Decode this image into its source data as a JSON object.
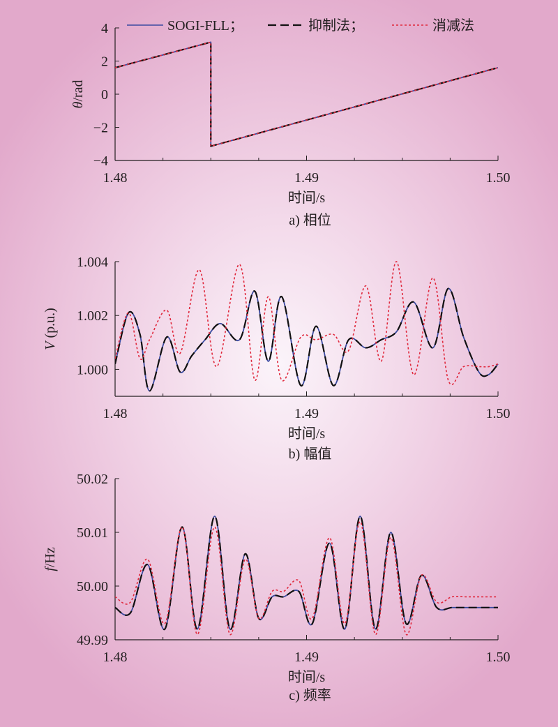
{
  "legend": {
    "sogi": "SOGI-FLL；",
    "suppress": "抑制法；",
    "cancel": "消减法"
  },
  "colors": {
    "sogi": "#3b4aa0",
    "suppress": "#111111",
    "cancel": "#e0283c"
  },
  "chart_data": [
    {
      "type": "line",
      "caption": "a) 相位",
      "xlabel": "时间/s",
      "ylabel": "θ/rad",
      "xlim": [
        1.48,
        1.5
      ],
      "ylim": [
        -4,
        4
      ],
      "xticks": [
        "1.48",
        "1.49",
        "1.50"
      ],
      "yticks": [
        "−4",
        "−2",
        "0",
        "2",
        "4"
      ],
      "series": [
        {
          "name": "SOGI-FLL",
          "x": [
            1.48,
            1.485,
            1.485,
            1.5
          ],
          "y": [
            1.6,
            3.14,
            -3.14,
            1.6
          ]
        },
        {
          "name": "抑制法",
          "x": [
            1.48,
            1.485,
            1.485,
            1.5
          ],
          "y": [
            1.6,
            3.14,
            -3.14,
            1.6
          ]
        },
        {
          "name": "消减法",
          "x": [
            1.48,
            1.485,
            1.485,
            1.5
          ],
          "y": [
            1.6,
            3.14,
            -3.14,
            1.6
          ]
        }
      ]
    },
    {
      "type": "line",
      "caption": "b) 幅值",
      "xlabel": "时间/s",
      "ylabel": "V (p.u.)",
      "xlim": [
        1.48,
        1.5
      ],
      "ylim": [
        0.999,
        1.004
      ],
      "xticks": [
        "1.48",
        "1.49",
        "1.50"
      ],
      "yticks": [
        "1.000",
        "1.002",
        "1.004"
      ],
      "series": [
        {
          "name": "SOGI-FLL",
          "x": [
            1.48,
            1.4807,
            1.4813,
            1.4818,
            1.4827,
            1.4834,
            1.484,
            1.4847,
            1.4855,
            1.4865,
            1.4873,
            1.488,
            1.4887,
            1.4897,
            1.4905,
            1.4914,
            1.4922,
            1.4931,
            1.4939,
            1.4947,
            1.4956,
            1.4966,
            1.4974,
            1.4982,
            1.499,
            1.4995,
            1.5
          ],
          "y": [
            1.0002,
            1.0021,
            1.0013,
            0.9992,
            1.0012,
            0.9999,
            1.0005,
            1.0011,
            1.0017,
            1.0011,
            1.0029,
            1.0003,
            1.0027,
            0.9994,
            1.0016,
            0.9994,
            1.0011,
            1.0008,
            1.0011,
            1.0014,
            1.0025,
            1.0008,
            1.003,
            1.0012,
            0.9999,
            0.9998,
            1.0002
          ]
        },
        {
          "name": "抑制法",
          "x": [
            1.48,
            1.4807,
            1.4813,
            1.4818,
            1.4827,
            1.4834,
            1.484,
            1.4847,
            1.4855,
            1.4865,
            1.4873,
            1.488,
            1.4887,
            1.4897,
            1.4905,
            1.4914,
            1.4922,
            1.4931,
            1.4939,
            1.4947,
            1.4956,
            1.4966,
            1.4974,
            1.4982,
            1.499,
            1.4995,
            1.5
          ],
          "y": [
            1.0002,
            1.0021,
            1.0013,
            0.9992,
            1.0012,
            0.9999,
            1.0005,
            1.0011,
            1.0017,
            1.0011,
            1.0029,
            1.0003,
            1.0027,
            0.9994,
            1.0016,
            0.9994,
            1.0011,
            1.0008,
            1.0011,
            1.0014,
            1.0025,
            1.0008,
            1.003,
            1.0012,
            0.9999,
            0.9998,
            1.0002
          ]
        },
        {
          "name": "消减法",
          "x": [
            1.48,
            1.4807,
            1.4813,
            1.4818,
            1.4827,
            1.4834,
            1.4844,
            1.4853,
            1.4865,
            1.4873,
            1.488,
            1.4887,
            1.4897,
            1.4905,
            1.4914,
            1.4922,
            1.4931,
            1.4939,
            1.4947,
            1.4956,
            1.4966,
            1.4974,
            1.4982,
            1.499,
            1.4995,
            1.5
          ],
          "y": [
            1.0004,
            1.0021,
            1.0004,
            1.0011,
            1.0022,
            1.0006,
            1.0037,
            1.0001,
            1.0039,
            0.9996,
            1.0027,
            0.9996,
            1.0012,
            1.0011,
            1.0013,
            1.0007,
            1.0031,
            1.0003,
            1.004,
            0.9998,
            1.0034,
            0.9996,
            1.0001,
            1.0001,
            1.0001,
            1.0002
          ]
        }
      ]
    },
    {
      "type": "line",
      "caption": "c) 频率",
      "xlabel": "时间/s",
      "ylabel": "f/Hz",
      "xlim": [
        1.48,
        1.5
      ],
      "ylim": [
        49.99,
        50.02
      ],
      "xticks": [
        "1.48",
        "1.49",
        "1.50"
      ],
      "yticks": [
        "49.99",
        "50.00",
        "50.01",
        "50.02"
      ],
      "series": [
        {
          "name": "SOGI-FLL",
          "x": [
            1.48,
            1.4808,
            1.4817,
            1.4826,
            1.4835,
            1.4843,
            1.4852,
            1.486,
            1.4868,
            1.4875,
            1.4882,
            1.4888,
            1.4896,
            1.4903,
            1.4912,
            1.492,
            1.4928,
            1.4936,
            1.4944,
            1.4952,
            1.496,
            1.4968,
            1.4976,
            1.4984,
            1.4992,
            1.5
          ],
          "y": [
            49.996,
            49.995,
            50.004,
            49.992,
            50.011,
            49.992,
            50.013,
            49.992,
            50.006,
            49.994,
            49.998,
            49.998,
            49.999,
            49.993,
            50.008,
            49.992,
            50.013,
            49.992,
            50.01,
            49.993,
            50.002,
            49.996,
            49.996,
            49.996,
            49.996,
            49.996
          ]
        },
        {
          "name": "抑制法",
          "x": [
            1.48,
            1.4808,
            1.4817,
            1.4826,
            1.4835,
            1.4843,
            1.4852,
            1.486,
            1.4868,
            1.4875,
            1.4882,
            1.4888,
            1.4896,
            1.4903,
            1.4912,
            1.492,
            1.4928,
            1.4936,
            1.4944,
            1.4952,
            1.496,
            1.4968,
            1.4976,
            1.4984,
            1.4992,
            1.5
          ],
          "y": [
            49.996,
            49.995,
            50.004,
            49.992,
            50.011,
            49.992,
            50.013,
            49.992,
            50.006,
            49.994,
            49.998,
            49.998,
            49.999,
            49.993,
            50.008,
            49.992,
            50.013,
            49.992,
            50.01,
            49.993,
            50.002,
            49.996,
            49.996,
            49.996,
            49.996,
            49.996
          ]
        },
        {
          "name": "消减法",
          "x": [
            1.48,
            1.4808,
            1.4817,
            1.4826,
            1.4835,
            1.4843,
            1.4852,
            1.486,
            1.4868,
            1.4875,
            1.4882,
            1.4888,
            1.4896,
            1.4903,
            1.4912,
            1.492,
            1.4928,
            1.4936,
            1.4944,
            1.4952,
            1.496,
            1.4968,
            1.4976,
            1.4984,
            1.4992,
            1.5
          ],
          "y": [
            49.998,
            49.997,
            50.005,
            49.993,
            50.011,
            49.991,
            50.011,
            49.991,
            50.005,
            49.994,
            49.999,
            49.999,
            50.001,
            49.994,
            50.009,
            49.993,
            50.012,
            49.991,
            50.009,
            49.991,
            50.002,
            49.997,
            49.998,
            49.998,
            49.998,
            49.998
          ]
        }
      ]
    }
  ]
}
